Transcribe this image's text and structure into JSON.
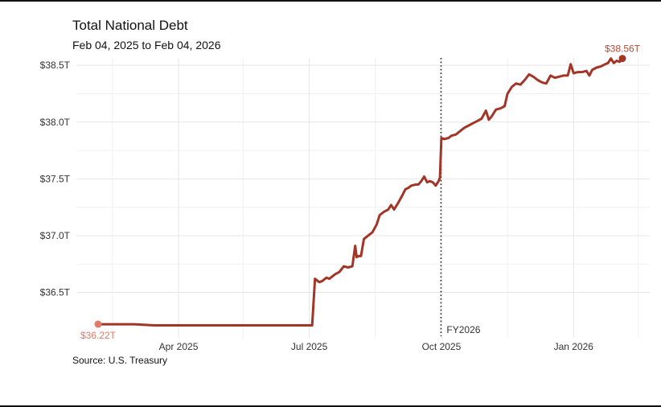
{
  "page": {
    "title": "Total National Debt",
    "subtitle": "Feb 04, 2025 to Feb 04, 2026",
    "source": "Source: U.S. Treasury"
  },
  "colors": {
    "line": "#a33526",
    "start_marker": "#e07a6a",
    "end_label": "#b84a3a",
    "grid": "#e6e6e6",
    "divider": "#222222"
  },
  "chart_data": {
    "type": "line",
    "title": "Total National Debt",
    "subtitle": "Feb 04, 2025 to Feb 04, 2026",
    "xlabel": "",
    "ylabel": "",
    "y_unit": "Trillions USD",
    "x_range": [
      "2025-02-04",
      "2026-02-04"
    ],
    "ylim": [
      36.1,
      38.65
    ],
    "x_ticks": [
      {
        "date": "2025-04-01",
        "label": "Apr 2025"
      },
      {
        "date": "2025-07-01",
        "label": "Jul 2025"
      },
      {
        "date": "2025-10-01",
        "label": "Oct 2025"
      },
      {
        "date": "2026-01-01",
        "label": "Jan 2026"
      }
    ],
    "y_ticks": [
      {
        "value": 36.5,
        "label": "$36.5T"
      },
      {
        "value": 37.0,
        "label": "$37.0T"
      },
      {
        "value": 37.5,
        "label": "$37.5T"
      },
      {
        "value": 38.0,
        "label": "$38.0T"
      },
      {
        "value": 38.5,
        "label": "$38.5T"
      }
    ],
    "grid": true,
    "annotations": [
      {
        "date": "2025-10-01",
        "label": "FY2026",
        "style": "dotted vertical line"
      }
    ],
    "start_label": "$36.22T",
    "end_label": "$38.56T",
    "series": [
      {
        "points": [
          [
            "2025-02-04",
            36.22
          ],
          [
            "2025-02-15",
            36.22
          ],
          [
            "2025-03-01",
            36.22
          ],
          [
            "2025-03-15",
            36.21
          ],
          [
            "2025-04-01",
            36.21
          ],
          [
            "2025-04-15",
            36.21
          ],
          [
            "2025-05-01",
            36.21
          ],
          [
            "2025-05-15",
            36.21
          ],
          [
            "2025-06-01",
            36.21
          ],
          [
            "2025-06-15",
            36.21
          ],
          [
            "2025-06-30",
            36.21
          ],
          [
            "2025-07-03",
            36.21
          ],
          [
            "2025-07-05",
            36.62
          ],
          [
            "2025-07-08",
            36.59
          ],
          [
            "2025-07-10",
            36.6
          ],
          [
            "2025-07-13",
            36.63
          ],
          [
            "2025-07-15",
            36.62
          ],
          [
            "2025-07-19",
            36.66
          ],
          [
            "2025-07-22",
            36.68
          ],
          [
            "2025-07-25",
            36.73
          ],
          [
            "2025-07-28",
            36.72
          ],
          [
            "2025-07-31",
            36.73
          ],
          [
            "2025-08-02",
            36.91
          ],
          [
            "2025-08-03",
            36.81
          ],
          [
            "2025-08-04",
            36.82
          ],
          [
            "2025-08-06",
            36.82
          ],
          [
            "2025-08-08",
            36.97
          ],
          [
            "2025-08-11",
            37.0
          ],
          [
            "2025-08-14",
            37.03
          ],
          [
            "2025-08-17",
            37.1
          ],
          [
            "2025-08-19",
            37.18
          ],
          [
            "2025-08-22",
            37.21
          ],
          [
            "2025-08-25",
            37.23
          ],
          [
            "2025-08-27",
            37.27
          ],
          [
            "2025-08-29",
            37.23
          ],
          [
            "2025-09-01",
            37.29
          ],
          [
            "2025-09-04",
            37.36
          ],
          [
            "2025-09-06",
            37.41
          ],
          [
            "2025-09-08",
            37.42
          ],
          [
            "2025-09-10",
            37.44
          ],
          [
            "2025-09-13",
            37.45
          ],
          [
            "2025-09-15",
            37.45
          ],
          [
            "2025-09-17",
            37.48
          ],
          [
            "2025-09-19",
            37.52
          ],
          [
            "2025-09-21",
            37.47
          ],
          [
            "2025-09-23",
            37.48
          ],
          [
            "2025-09-25",
            37.47
          ],
          [
            "2025-09-27",
            37.44
          ],
          [
            "2025-09-29",
            37.48
          ],
          [
            "2025-09-30",
            37.51
          ],
          [
            "2025-10-01",
            37.86
          ],
          [
            "2025-10-03",
            37.85
          ],
          [
            "2025-10-06",
            37.86
          ],
          [
            "2025-10-08",
            37.88
          ],
          [
            "2025-10-11",
            37.89
          ],
          [
            "2025-10-14",
            37.92
          ],
          [
            "2025-10-17",
            37.95
          ],
          [
            "2025-10-20",
            37.97
          ],
          [
            "2025-10-23",
            37.99
          ],
          [
            "2025-10-26",
            38.01
          ],
          [
            "2025-10-29",
            38.03
          ],
          [
            "2025-11-01",
            38.1
          ],
          [
            "2025-11-03",
            38.02
          ],
          [
            "2025-11-05",
            38.05
          ],
          [
            "2025-11-08",
            38.11
          ],
          [
            "2025-11-11",
            38.12
          ],
          [
            "2025-11-14",
            38.14
          ],
          [
            "2025-11-16",
            38.25
          ],
          [
            "2025-11-19",
            38.31
          ],
          [
            "2025-11-22",
            38.34
          ],
          [
            "2025-11-25",
            38.33
          ],
          [
            "2025-11-28",
            38.37
          ],
          [
            "2025-12-01",
            38.42
          ],
          [
            "2025-12-04",
            38.4
          ],
          [
            "2025-12-07",
            38.37
          ],
          [
            "2025-12-10",
            38.35
          ],
          [
            "2025-12-13",
            38.34
          ],
          [
            "2025-12-16",
            38.41
          ],
          [
            "2025-12-19",
            38.39
          ],
          [
            "2025-12-22",
            38.4
          ],
          [
            "2025-12-25",
            38.41
          ],
          [
            "2025-12-28",
            38.41
          ],
          [
            "2025-12-30",
            38.51
          ],
          [
            "2026-01-01",
            38.43
          ],
          [
            "2026-01-04",
            38.44
          ],
          [
            "2026-01-07",
            38.44
          ],
          [
            "2026-01-10",
            38.45
          ],
          [
            "2026-01-12",
            38.41
          ],
          [
            "2026-01-14",
            38.46
          ],
          [
            "2026-01-17",
            38.48
          ],
          [
            "2026-01-20",
            38.49
          ],
          [
            "2026-01-23",
            38.51
          ],
          [
            "2026-01-25",
            38.52
          ],
          [
            "2026-01-27",
            38.56
          ],
          [
            "2026-01-29",
            38.52
          ],
          [
            "2026-01-31",
            38.54
          ],
          [
            "2026-02-02",
            38.53
          ],
          [
            "2026-02-04",
            38.56
          ]
        ]
      }
    ]
  }
}
